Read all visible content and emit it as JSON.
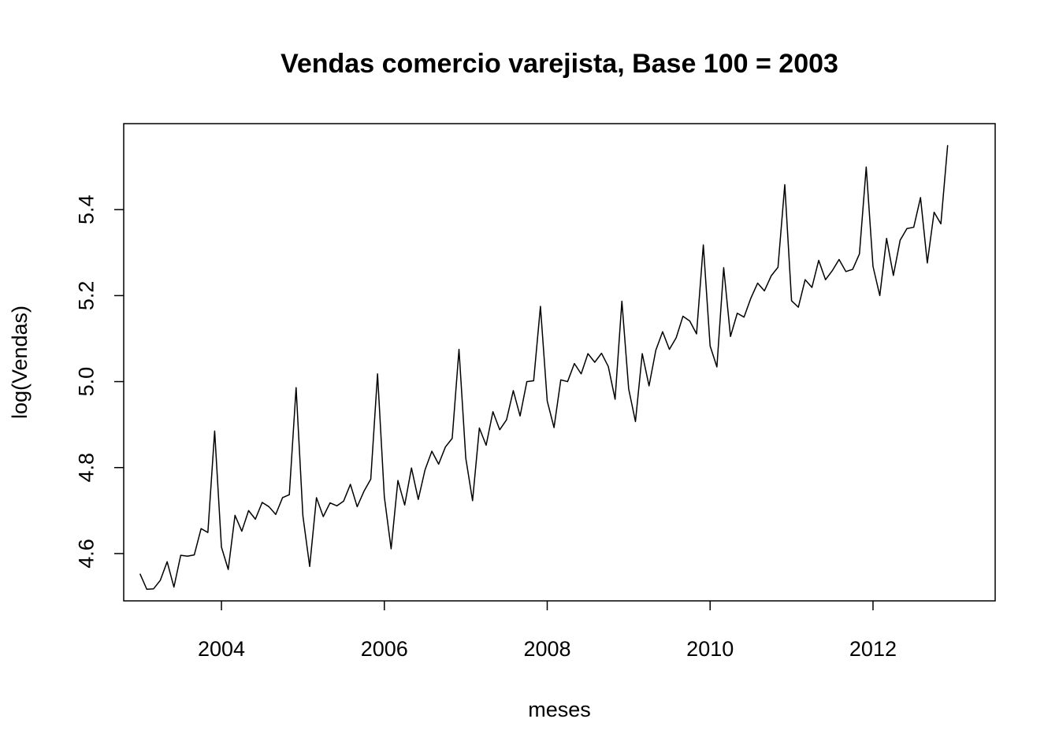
{
  "chart_data": {
    "type": "line",
    "title": "Vendas comercio varejista, Base 100 = 2003",
    "xlabel": "meses",
    "ylabel": "log(Vendas)",
    "xlim": [
      2002.8,
      2013.5
    ],
    "ylim": [
      4.49,
      5.6
    ],
    "x_ticks": [
      2004,
      2006,
      2008,
      2010,
      2012
    ],
    "x_tick_labels": [
      "2004",
      "2006",
      "2008",
      "2010",
      "2012"
    ],
    "y_ticks": [
      4.6,
      4.8,
      5.0,
      5.2,
      5.4
    ],
    "y_tick_labels": [
      "4.6",
      "4.8",
      "5.0",
      "5.2",
      "5.4"
    ],
    "x_start": "2003-01",
    "frequency": "monthly",
    "series": [
      {
        "values": [
          4.553,
          4.517,
          4.518,
          4.538,
          4.581,
          4.522,
          4.596,
          4.594,
          4.597,
          4.658,
          4.649,
          4.885,
          4.615,
          4.563,
          4.689,
          4.652,
          4.7,
          4.68,
          4.719,
          4.709,
          4.691,
          4.73,
          4.737,
          4.986,
          4.688,
          4.57,
          4.73,
          4.686,
          4.718,
          4.711,
          4.722,
          4.761,
          4.709,
          4.745,
          4.773,
          5.018,
          4.732,
          4.611,
          4.77,
          4.713,
          4.799,
          4.726,
          4.795,
          4.838,
          4.808,
          4.848,
          4.868,
          5.075,
          4.822,
          4.723,
          4.892,
          4.852,
          4.93,
          4.888,
          4.911,
          4.979,
          4.92,
          5.0,
          5.002,
          5.175,
          4.955,
          4.893,
          5.004,
          5.0,
          5.042,
          5.018,
          5.065,
          5.045,
          5.066,
          5.035,
          4.959,
          5.187,
          4.983,
          4.907,
          5.065,
          4.99,
          5.073,
          5.116,
          5.075,
          5.102,
          5.152,
          5.141,
          5.111,
          5.318,
          5.083,
          5.034,
          5.265,
          5.105,
          5.159,
          5.15,
          5.194,
          5.229,
          5.211,
          5.246,
          5.266,
          5.458,
          5.188,
          5.173,
          5.237,
          5.219,
          5.282,
          5.237,
          5.258,
          5.284,
          5.256,
          5.261,
          5.297,
          5.499,
          5.268,
          5.2,
          5.333,
          5.247,
          5.329,
          5.356,
          5.359,
          5.428,
          5.276,
          5.394,
          5.367,
          5.55
        ]
      }
    ]
  }
}
